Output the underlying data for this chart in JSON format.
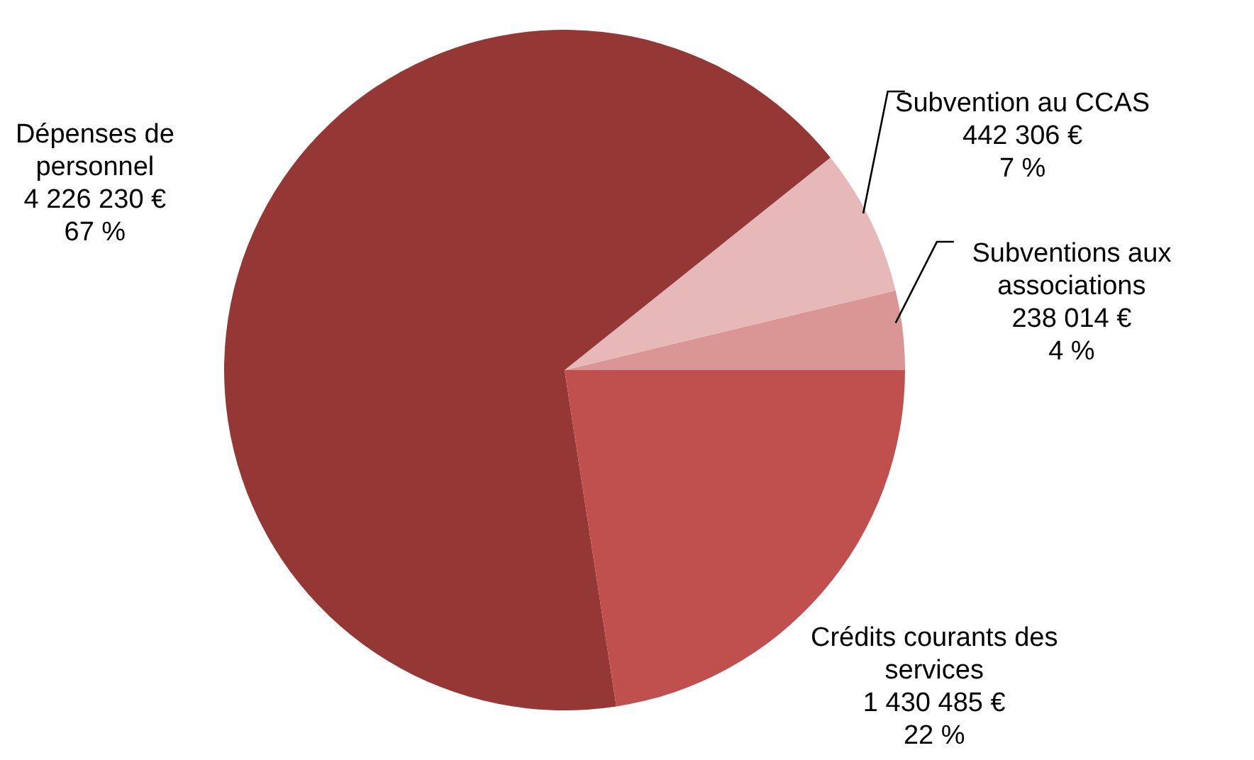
{
  "chart_data": {
    "type": "pie",
    "categories": [
      "Subventions aux associations",
      "Subvention au CCAS",
      "Dépenses de personnel",
      "Crédits courants des services"
    ],
    "values": [
      238014,
      442306,
      4226230,
      1430485
    ],
    "value_labels": [
      "238 014 €\n4 %",
      "442 306 €\n7 %",
      "4 226 230 €\n67 %",
      "1 430 485 €\n22 %"
    ],
    "colors": [
      "#d99694",
      "#e6b9b8",
      "#953735",
      "#c0504d"
    ],
    "legend": false
  }
}
